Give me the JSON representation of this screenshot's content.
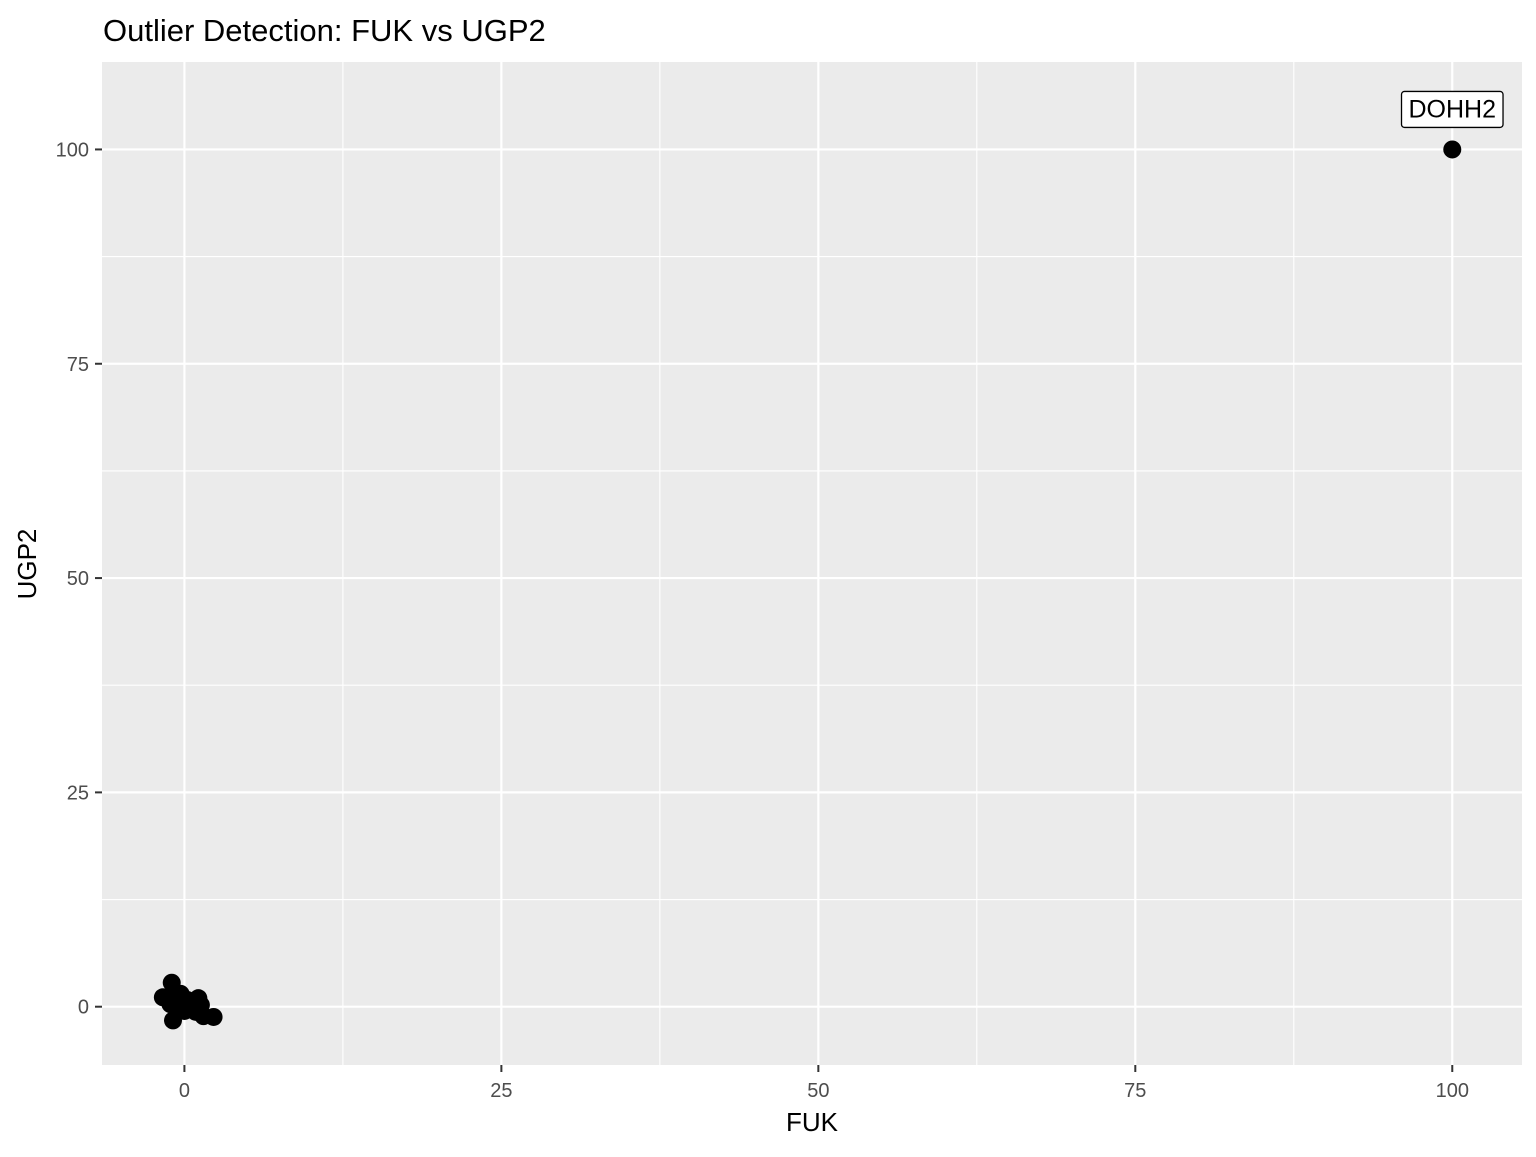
{
  "chart_data": {
    "type": "scatter",
    "title": "Outlier Detection: FUK vs UGP2",
    "xlabel": "FUK",
    "ylabel": "UGP2",
    "xlim": [
      -6.5,
      105.5
    ],
    "ylim": [
      -6.8,
      110.2
    ],
    "x_ticks": [
      0,
      25,
      50,
      75,
      100
    ],
    "y_ticks": [
      0,
      25,
      50,
      75,
      100
    ],
    "x_tick_labels": [
      "0",
      "25",
      "50",
      "75",
      "100"
    ],
    "y_tick_labels": [
      "0",
      "25",
      "50",
      "75",
      "100"
    ],
    "grid": true,
    "legend": "none",
    "colors": {
      "panel": "#ebebeb",
      "grid": "#ffffff",
      "point": "#000000",
      "tick_label": "#4d4d4d"
    },
    "series": [
      {
        "points": [
          {
            "x": -1.7,
            "y": 1.1
          },
          {
            "x": -1.0,
            "y": 2.8
          },
          {
            "x": -0.8,
            "y": 1.4
          },
          {
            "x": -0.3,
            "y": 1.5
          },
          {
            "x": 0.2,
            "y": 0.8
          },
          {
            "x": -1.1,
            "y": 0.3
          },
          {
            "x": -0.5,
            "y": -0.2
          },
          {
            "x": 0.6,
            "y": -0.1
          },
          {
            "x": 1.1,
            "y": 1.0
          },
          {
            "x": 0.9,
            "y": -0.6
          },
          {
            "x": 1.5,
            "y": -1.1
          },
          {
            "x": 2.3,
            "y": -1.2
          },
          {
            "x": -0.9,
            "y": -1.6
          },
          {
            "x": -0.2,
            "y": 0.4
          },
          {
            "x": 0.4,
            "y": 0.1
          },
          {
            "x": 1.3,
            "y": 0.2
          },
          {
            "x": -1.4,
            "y": 1.0
          },
          {
            "x": 0.0,
            "y": -0.5
          }
        ]
      },
      {
        "points": [
          {
            "x": 100,
            "y": 100,
            "label": "DOHH2"
          }
        ]
      }
    ]
  }
}
